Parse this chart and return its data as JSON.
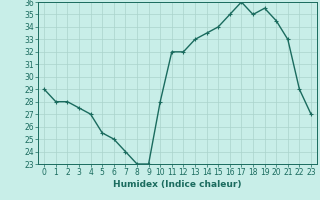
{
  "x": [
    0,
    1,
    2,
    3,
    4,
    5,
    6,
    7,
    8,
    9,
    10,
    11,
    12,
    13,
    14,
    15,
    16,
    17,
    18,
    19,
    20,
    21,
    22,
    23
  ],
  "y": [
    29,
    28,
    28,
    27.5,
    27,
    25.5,
    25,
    24,
    23,
    23,
    28,
    32,
    32,
    33,
    33.5,
    34,
    35,
    36,
    35,
    35.5,
    34.5,
    33,
    29,
    27
  ],
  "line_color": "#1a6b5e",
  "marker": "+",
  "bg_color": "#c8eee8",
  "grid_color": "#aad4cc",
  "xlabel": "Humidex (Indice chaleur)",
  "ylim": [
    23,
    36
  ],
  "xlim": [
    -0.5,
    23.5
  ],
  "yticks": [
    23,
    24,
    25,
    26,
    27,
    28,
    29,
    30,
    31,
    32,
    33,
    34,
    35,
    36
  ],
  "xticks": [
    0,
    1,
    2,
    3,
    4,
    5,
    6,
    7,
    8,
    9,
    10,
    11,
    12,
    13,
    14,
    15,
    16,
    17,
    18,
    19,
    20,
    21,
    22,
    23
  ],
  "tick_label_fontsize": 5.5,
  "xlabel_fontsize": 6.5,
  "line_width": 1.0,
  "marker_size": 3,
  "marker_edge_width": 0.8
}
